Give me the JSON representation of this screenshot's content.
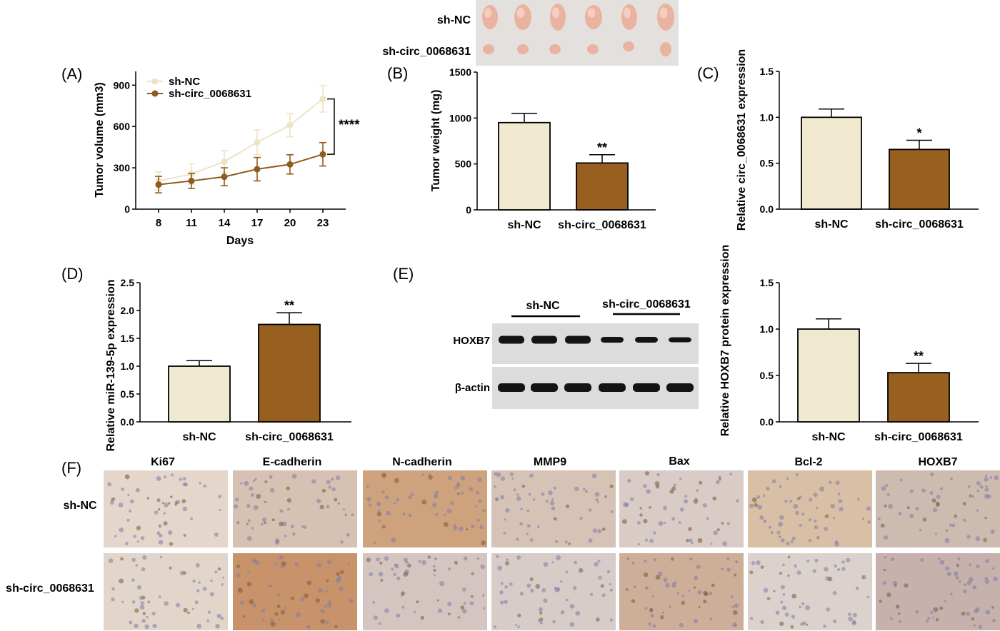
{
  "colors": {
    "nc": "#f0e9cf",
    "nc_line": "#ede4c3",
    "sh": "#97601f",
    "sh_line": "#8f5b1c",
    "tissue_light": "#eddbd3",
    "tumor": "#e9b3a0",
    "band": "#141414",
    "blot_bg": "#dcdcdc",
    "ihc_bg": "#e6d7cc"
  },
  "panels": {
    "A": {
      "label": "(A)"
    },
    "B": {
      "label": "(B)",
      "photo_rows": [
        "sh-NC",
        "sh-circ_0068631"
      ]
    },
    "C": {
      "label": "(C)"
    },
    "D": {
      "label": "(D)"
    },
    "E": {
      "label": "(E)",
      "blot_groups": [
        "sh-NC",
        "sh-circ_0068631"
      ],
      "blot_rows": [
        "HOXB7",
        "β-actin"
      ]
    },
    "F": {
      "label": "(F)",
      "columns": [
        "Ki67",
        "E-cadherin",
        "N-cadherin",
        "MMP9",
        "Bax",
        "Bcl-2",
        "HOXB7"
      ],
      "rows": [
        "sh-NC",
        "sh-circ_0068631"
      ]
    }
  },
  "chart_data": [
    {
      "panel": "A",
      "type": "line",
      "ylabel": "Tumor volume (mm3)",
      "xlabel": "Days",
      "x": [
        8,
        11,
        14,
        17,
        20,
        23
      ],
      "xticks": [
        "8",
        "11",
        "14",
        "17",
        "20",
        "23"
      ],
      "ylim": [
        0,
        1000
      ],
      "yticks": [
        "0",
        "300",
        "600",
        "900"
      ],
      "series": [
        {
          "name": "sh-NC",
          "values": [
            205,
            255,
            345,
            485,
            610,
            800
          ],
          "err": [
            65,
            75,
            80,
            90,
            85,
            95
          ]
        },
        {
          "name": "sh-circ_0068631",
          "values": [
            178,
            205,
            235,
            290,
            325,
            398
          ],
          "err": [
            60,
            55,
            65,
            85,
            70,
            85
          ]
        }
      ],
      "significance": "****"
    },
    {
      "panel": "B",
      "type": "bar",
      "ylabel": "Tumor weight (mg)",
      "categories": [
        "sh-NC",
        "sh-circ_0068631"
      ],
      "values": [
        950,
        510
      ],
      "err": [
        100,
        90
      ],
      "ylim": [
        0,
        1500
      ],
      "yticks": [
        "0",
        "500",
        "1000",
        "1500"
      ],
      "significance": [
        "",
        "**"
      ]
    },
    {
      "panel": "C",
      "type": "bar",
      "ylabel": "Relative circ_0068631 expression",
      "categories": [
        "sh-NC",
        "sh-circ_0068631"
      ],
      "values": [
        1.0,
        0.65
      ],
      "err": [
        0.09,
        0.1
      ],
      "ylim": [
        0,
        1.5
      ],
      "yticks": [
        "0.0",
        "0.5",
        "1.0",
        "1.5"
      ],
      "significance": [
        "",
        "*"
      ]
    },
    {
      "panel": "D",
      "type": "bar",
      "ylabel": "Relative miR-139-5p expression",
      "categories": [
        "sh-NC",
        "sh-circ_0068631"
      ],
      "values": [
        1.0,
        1.75
      ],
      "err": [
        0.1,
        0.21
      ],
      "ylim": [
        0,
        2.5
      ],
      "yticks": [
        "0.0",
        "0.5",
        "1.0",
        "1.5",
        "2.0",
        "2.5"
      ],
      "significance": [
        "",
        "**"
      ]
    },
    {
      "panel": "E",
      "type": "bar",
      "ylabel": "Relative HOXB7 protein expression",
      "categories": [
        "sh-NC",
        "sh-circ_0068631"
      ],
      "values": [
        1.0,
        0.53
      ],
      "err": [
        0.11,
        0.1
      ],
      "ylim": [
        0,
        1.5
      ],
      "yticks": [
        "0.0",
        "0.5",
        "1.0",
        "1.5"
      ],
      "significance": [
        "",
        "**"
      ]
    }
  ]
}
